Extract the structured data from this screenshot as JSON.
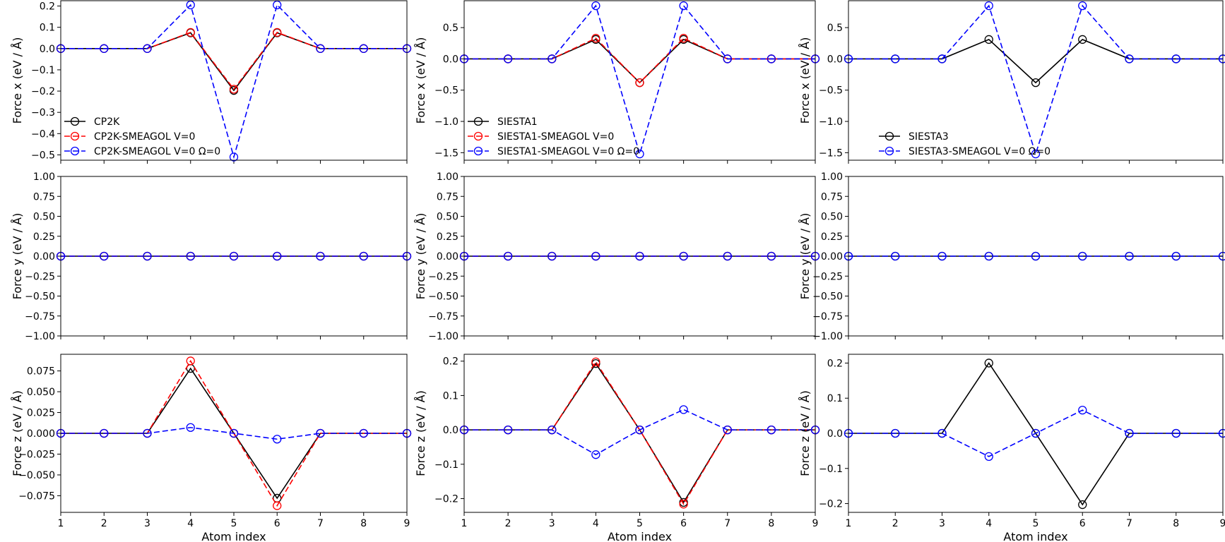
{
  "figure": {
    "xlabel": "Atom index"
  },
  "chart_data": [
    {
      "type": "line",
      "panel": "row1-col1",
      "xlabel": "",
      "ylabel": "Force x (eV / Å)",
      "xlim": [
        1,
        9
      ],
      "ylim": [
        -0.525,
        0.225
      ],
      "xticks": [
        1,
        2,
        3,
        4,
        5,
        6,
        7,
        8,
        9
      ],
      "yticks": [
        -0.5,
        -0.4,
        -0.3,
        -0.2,
        -0.1,
        0.0,
        0.1,
        0.2
      ],
      "ytick_labels": [
        "−0.5",
        "−0.4",
        "−0.3",
        "−0.2",
        "−0.1",
        "0.0",
        "0.1",
        "0.2"
      ],
      "x": [
        1,
        2,
        3,
        4,
        5,
        6,
        7,
        8,
        9
      ],
      "legend": "lower-left",
      "series": [
        {
          "name": "CP2K",
          "color": "#000000",
          "linestyle": "solid",
          "values": [
            0,
            0,
            0,
            0.074,
            -0.197,
            0.074,
            0,
            0,
            0
          ]
        },
        {
          "name": "CP2K-SMEAGOL V=0",
          "color": "#ff0000",
          "linestyle": "dashed",
          "values": [
            0,
            0,
            0,
            0.076,
            -0.191,
            0.076,
            0,
            0,
            0
          ]
        },
        {
          "name": "CP2K-SMEAGOL V=0 Ω=0",
          "color": "#0000ff",
          "linestyle": "dashed",
          "values": [
            0,
            0,
            0,
            0.205,
            -0.51,
            0.205,
            0,
            0,
            0
          ]
        }
      ]
    },
    {
      "type": "line",
      "panel": "row1-col2",
      "xlabel": "",
      "ylabel": "Force x (eV / Å)",
      "xlim": [
        1,
        9
      ],
      "ylim": [
        -1.62,
        0.93
      ],
      "xticks": [
        1,
        2,
        3,
        4,
        5,
        6,
        7,
        8,
        9
      ],
      "yticks": [
        -1.5,
        -1.0,
        -0.5,
        0.0,
        0.5
      ],
      "ytick_labels": [
        "−1.5",
        "−1.0",
        "−0.5",
        "0.0",
        "0.5"
      ],
      "x": [
        1,
        2,
        3,
        4,
        5,
        6,
        7,
        8,
        9
      ],
      "legend": "lower-left",
      "series": [
        {
          "name": "SIESTA1",
          "color": "#000000",
          "linestyle": "solid",
          "values": [
            0,
            0,
            0,
            0.31,
            -0.38,
            0.31,
            0,
            0,
            0
          ]
        },
        {
          "name": "SIESTA1-SMEAGOL V=0",
          "color": "#ff0000",
          "linestyle": "dashed",
          "values": [
            0,
            0,
            0,
            0.33,
            -0.38,
            0.33,
            0,
            0,
            0
          ]
        },
        {
          "name": "SIESTA1-SMEAGOL V=0 Ω=0",
          "color": "#0000ff",
          "linestyle": "dashed",
          "values": [
            0,
            0,
            0,
            0.85,
            -1.52,
            0.85,
            0,
            0,
            0
          ]
        }
      ]
    },
    {
      "type": "line",
      "panel": "row1-col3",
      "xlabel": "",
      "ylabel": "Force x (eV / Å)",
      "xlim": [
        1,
        9
      ],
      "ylim": [
        -1.62,
        0.93
      ],
      "xticks": [
        1,
        2,
        3,
        4,
        5,
        6,
        7,
        8,
        9
      ],
      "yticks": [
        -1.5,
        -1.0,
        -0.5,
        0.0,
        0.5
      ],
      "ytick_labels": [
        "−1.5",
        "−1.0",
        "−0.5",
        "0.0",
        "0.5"
      ],
      "x": [
        1,
        2,
        3,
        4,
        5,
        6,
        7,
        8,
        9
      ],
      "legend": "lower-left",
      "series": [
        {
          "name": "SIESTA3",
          "color": "#000000",
          "linestyle": "solid",
          "values": [
            0,
            0,
            0,
            0.31,
            -0.38,
            0.31,
            0,
            0,
            0
          ]
        },
        {
          "name": "SIESTA3-SMEAGOL V=0 Ω=0",
          "color": "#0000ff",
          "linestyle": "dashed",
          "values": [
            0,
            0,
            0,
            0.85,
            -1.52,
            0.85,
            0,
            0,
            0
          ]
        }
      ]
    },
    {
      "type": "line",
      "panel": "row2-col1",
      "xlabel": "",
      "ylabel": "Force y (eV / Å)",
      "xlim": [
        1,
        9
      ],
      "ylim": [
        -1.0,
        1.0
      ],
      "xticks": [
        1,
        2,
        3,
        4,
        5,
        6,
        7,
        8,
        9
      ],
      "yticks": [
        -1.0,
        -0.75,
        -0.5,
        -0.25,
        0.0,
        0.25,
        0.5,
        0.75,
        1.0
      ],
      "ytick_labels": [
        "−1.00",
        "−0.75",
        "−0.50",
        "−0.25",
        "0.00",
        "0.25",
        "0.50",
        "0.75",
        "1.00"
      ],
      "x": [
        1,
        2,
        3,
        4,
        5,
        6,
        7,
        8,
        9
      ],
      "series": [
        {
          "name": "CP2K",
          "color": "#000000",
          "linestyle": "solid",
          "values": [
            0,
            0,
            0,
            0,
            0,
            0,
            0,
            0,
            0
          ]
        },
        {
          "name": "CP2K-SMEAGOL V=0",
          "color": "#ff0000",
          "linestyle": "dashed",
          "values": [
            0,
            0,
            0,
            0,
            0,
            0,
            0,
            0,
            0
          ]
        },
        {
          "name": "CP2K-SMEAGOL V=0 Ω=0",
          "color": "#0000ff",
          "linestyle": "dashed",
          "values": [
            0,
            0,
            0,
            0,
            0,
            0,
            0,
            0,
            0
          ]
        }
      ]
    },
    {
      "type": "line",
      "panel": "row2-col2",
      "xlabel": "",
      "ylabel": "Force y (eV / Å)",
      "xlim": [
        1,
        9
      ],
      "ylim": [
        -1.0,
        1.0
      ],
      "xticks": [
        1,
        2,
        3,
        4,
        5,
        6,
        7,
        8,
        9
      ],
      "yticks": [
        -1.0,
        -0.75,
        -0.5,
        -0.25,
        0.0,
        0.25,
        0.5,
        0.75,
        1.0
      ],
      "ytick_labels": [
        "−1.00",
        "−0.75",
        "−0.50",
        "−0.25",
        "0.00",
        "0.25",
        "0.50",
        "0.75",
        "1.00"
      ],
      "x": [
        1,
        2,
        3,
        4,
        5,
        6,
        7,
        8,
        9
      ],
      "series": [
        {
          "name": "SIESTA1",
          "color": "#000000",
          "linestyle": "solid",
          "values": [
            0,
            0,
            0,
            0,
            0,
            0,
            0,
            0,
            0
          ]
        },
        {
          "name": "SIESTA1-SMEAGOL V=0",
          "color": "#ff0000",
          "linestyle": "dashed",
          "values": [
            0,
            0,
            0,
            0,
            0,
            0,
            0,
            0,
            0
          ]
        },
        {
          "name": "SIESTA1-SMEAGOL V=0 Ω=0",
          "color": "#0000ff",
          "linestyle": "dashed",
          "values": [
            0,
            0,
            0,
            0,
            0,
            0,
            0,
            0,
            0
          ]
        }
      ]
    },
    {
      "type": "line",
      "panel": "row2-col3",
      "xlabel": "",
      "ylabel": "Force y (eV / Å)",
      "xlim": [
        1,
        9
      ],
      "ylim": [
        -1.0,
        1.0
      ],
      "xticks": [
        1,
        2,
        3,
        4,
        5,
        6,
        7,
        8,
        9
      ],
      "yticks": [
        -1.0,
        -0.75,
        -0.5,
        -0.25,
        0.0,
        0.25,
        0.5,
        0.75,
        1.0
      ],
      "ytick_labels": [
        "−1.00",
        "−0.75",
        "−0.50",
        "−0.25",
        "0.00",
        "0.25",
        "0.50",
        "0.75",
        "1.00"
      ],
      "x": [
        1,
        2,
        3,
        4,
        5,
        6,
        7,
        8,
        9
      ],
      "series": [
        {
          "name": "SIESTA3",
          "color": "#000000",
          "linestyle": "solid",
          "values": [
            0,
            0,
            0,
            0,
            0,
            0,
            0,
            0,
            0
          ]
        },
        {
          "name": "SIESTA3-SMEAGOL V=0 Ω=0",
          "color": "#0000ff",
          "linestyle": "dashed",
          "values": [
            0,
            0,
            0,
            0,
            0,
            0,
            0,
            0,
            0
          ]
        }
      ]
    },
    {
      "type": "line",
      "panel": "row3-col1",
      "xlabel": "Atom index",
      "ylabel": "Force z (eV / Å)",
      "xlim": [
        1,
        9
      ],
      "ylim": [
        -0.095,
        0.095
      ],
      "xticks": [
        1,
        2,
        3,
        4,
        5,
        6,
        7,
        8,
        9
      ],
      "yticks": [
        -0.075,
        -0.05,
        -0.025,
        0.0,
        0.025,
        0.05,
        0.075
      ],
      "ytick_labels": [
        "−0.075",
        "−0.050",
        "−0.025",
        "0.000",
        "0.025",
        "0.050",
        "0.075"
      ],
      "x": [
        1,
        2,
        3,
        4,
        5,
        6,
        7,
        8,
        9
      ],
      "series": [
        {
          "name": "CP2K",
          "color": "#000000",
          "linestyle": "solid",
          "values": [
            0,
            0,
            0,
            0.078,
            0,
            -0.078,
            0,
            0,
            0
          ]
        },
        {
          "name": "CP2K-SMEAGOL V=0",
          "color": "#ff0000",
          "linestyle": "dashed",
          "values": [
            0,
            0,
            0,
            0.087,
            0,
            -0.087,
            0,
            0,
            0
          ]
        },
        {
          "name": "CP2K-SMEAGOL V=0 Ω=0",
          "color": "#0000ff",
          "linestyle": "dashed",
          "values": [
            0,
            0,
            0,
            0.007,
            0,
            -0.007,
            0,
            0,
            0
          ]
        }
      ]
    },
    {
      "type": "line",
      "panel": "row3-col2",
      "xlabel": "Atom index",
      "ylabel": "Force z (eV / Å)",
      "xlim": [
        1,
        9
      ],
      "ylim": [
        -0.24,
        0.22
      ],
      "xticks": [
        1,
        2,
        3,
        4,
        5,
        6,
        7,
        8,
        9
      ],
      "yticks": [
        -0.2,
        -0.1,
        0.0,
        0.1,
        0.2
      ],
      "ytick_labels": [
        "−0.2",
        "−0.1",
        "0.0",
        "0.1",
        "0.2"
      ],
      "x": [
        1,
        2,
        3,
        4,
        5,
        6,
        7,
        8,
        9
      ],
      "series": [
        {
          "name": "SIESTA1",
          "color": "#000000",
          "linestyle": "solid",
          "values": [
            0,
            0,
            0,
            0.193,
            0,
            -0.211,
            0,
            0,
            0
          ]
        },
        {
          "name": "SIESTA1-SMEAGOL V=0",
          "color": "#ff0000",
          "linestyle": "dashed",
          "values": [
            0,
            0,
            0,
            0.198,
            0,
            -0.216,
            0,
            0,
            0
          ]
        },
        {
          "name": "SIESTA1-SMEAGOL V=0 Ω=0",
          "color": "#0000ff",
          "linestyle": "dashed",
          "values": [
            0,
            0,
            0,
            -0.072,
            0,
            0.059,
            0,
            0,
            0
          ]
        }
      ]
    },
    {
      "type": "line",
      "panel": "row3-col3",
      "xlabel": "Atom index",
      "ylabel": "Force z (eV / Å)",
      "xlim": [
        1,
        9
      ],
      "ylim": [
        -0.225,
        0.225
      ],
      "xticks": [
        1,
        2,
        3,
        4,
        5,
        6,
        7,
        8,
        9
      ],
      "yticks": [
        -0.2,
        -0.1,
        0.0,
        0.1,
        0.2
      ],
      "ytick_labels": [
        "−0.2",
        "−0.1",
        "0.0",
        "0.1",
        "0.2"
      ],
      "x": [
        1,
        2,
        3,
        4,
        5,
        6,
        7,
        8,
        9
      ],
      "series": [
        {
          "name": "SIESTA3",
          "color": "#000000",
          "linestyle": "solid",
          "values": [
            0,
            0,
            0,
            0.2,
            0,
            -0.203,
            0,
            0,
            0
          ]
        },
        {
          "name": "SIESTA3-SMEAGOL V=0 Ω=0",
          "color": "#0000ff",
          "linestyle": "dashed",
          "values": [
            0,
            0,
            0,
            -0.066,
            0,
            0.066,
            0,
            0,
            0
          ]
        }
      ]
    }
  ]
}
